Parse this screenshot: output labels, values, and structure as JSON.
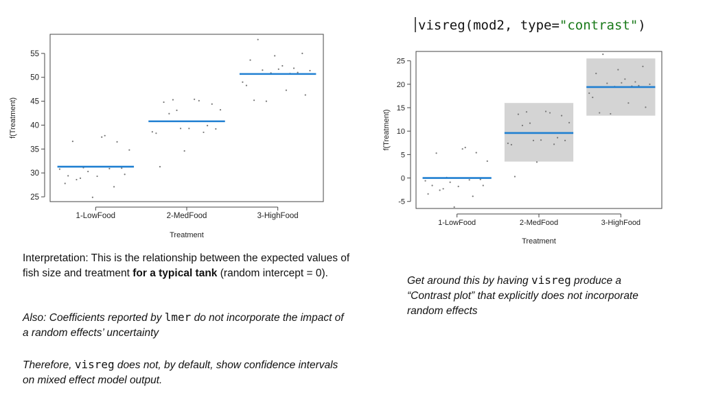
{
  "code": {
    "prefix": "visreg(mod2, type=",
    "string": "\"contrast\"",
    "suffix": ")"
  },
  "left_text": {
    "p1_before": "Interpretation: This is the relationship between the expected values of fish size and treatment ",
    "p1_bold": "for a typical tank",
    "p1_after": " (random intercept = 0).",
    "p2_a": "Also: Coefficients reported by ",
    "p2_code": "lmer",
    "p2_b": " do not incorporate the impact of a random effects’ uncertainty",
    "p3_a": "Therefore, ",
    "p3_code": "visreg",
    "p3_b": " does not, by default, show confidence intervals on mixed effect model output."
  },
  "right_text": {
    "a": "Get around this by having ",
    "code": "visreg",
    "b": " produce a “Contrast plot” that explicitly does not incorporate random effects"
  },
  "colors": {
    "fit_line": "#1f7fd1",
    "band": "#d4d4d4",
    "points": "#777777"
  },
  "chart_data": [
    {
      "type": "scatter",
      "xlabel": "Treatment",
      "ylabel": "f(Treatment)",
      "categories": [
        "1-LowFood",
        "2-MedFood",
        "3-HighFood"
      ],
      "ylim": [
        24,
        59
      ],
      "yticks": [
        25,
        30,
        35,
        40,
        45,
        50,
        55
      ],
      "fit": [
        31.3,
        40.8,
        50.7
      ],
      "bands": [],
      "points": [
        [
          [
            0.03,
            30.8
          ],
          [
            0.1,
            27.8
          ],
          [
            0.14,
            29.4
          ],
          [
            0.2,
            36.6
          ],
          [
            0.25,
            28.6
          ],
          [
            0.3,
            28.9
          ],
          [
            0.34,
            31.1
          ],
          [
            0.4,
            30.3
          ],
          [
            0.46,
            24.9
          ],
          [
            0.52,
            29.3
          ],
          [
            0.58,
            37.5
          ],
          [
            0.62,
            37.8
          ],
          [
            0.68,
            30.9
          ],
          [
            0.74,
            27.1
          ],
          [
            0.78,
            36.5
          ],
          [
            0.84,
            31.0
          ],
          [
            0.88,
            29.7
          ],
          [
            0.94,
            34.8
          ]
        ],
        [
          [
            0.05,
            38.6
          ],
          [
            0.1,
            38.3
          ],
          [
            0.15,
            31.3
          ],
          [
            0.2,
            44.8
          ],
          [
            0.27,
            42.4
          ],
          [
            0.32,
            45.3
          ],
          [
            0.37,
            43.1
          ],
          [
            0.42,
            39.3
          ],
          [
            0.47,
            34.6
          ],
          [
            0.53,
            39.3
          ],
          [
            0.6,
            45.4
          ],
          [
            0.66,
            45.1
          ],
          [
            0.72,
            38.5
          ],
          [
            0.77,
            39.9
          ],
          [
            0.83,
            44.4
          ],
          [
            0.88,
            39.2
          ],
          [
            0.94,
            43.2
          ]
        ],
        [
          [
            0.04,
            49.0
          ],
          [
            0.09,
            48.3
          ],
          [
            0.14,
            53.6
          ],
          [
            0.19,
            45.2
          ],
          [
            0.24,
            57.9
          ],
          [
            0.3,
            51.5
          ],
          [
            0.35,
            45.0
          ],
          [
            0.41,
            50.9
          ],
          [
            0.46,
            54.5
          ],
          [
            0.51,
            51.7
          ],
          [
            0.56,
            52.4
          ],
          [
            0.61,
            47.3
          ],
          [
            0.66,
            50.8
          ],
          [
            0.71,
            51.9
          ],
          [
            0.76,
            51.0
          ],
          [
            0.82,
            55.0
          ],
          [
            0.86,
            46.3
          ],
          [
            0.92,
            51.4
          ]
        ]
      ]
    },
    {
      "type": "scatter",
      "xlabel": "Treatment",
      "ylabel": "f(Treatment)",
      "categories": [
        "1-LowFood",
        "2-MedFood",
        "3-HighFood"
      ],
      "ylim": [
        -6.5,
        27
      ],
      "yticks": [
        -5,
        0,
        5,
        10,
        15,
        20,
        25
      ],
      "fit": [
        0,
        9.6,
        19.4
      ],
      "bands": [
        [
          0,
          0
        ],
        [
          3.5,
          16.0
        ],
        [
          13.3,
          25.5
        ]
      ],
      "points": [
        [
          [
            0.04,
            -0.6
          ],
          [
            0.08,
            -3.4
          ],
          [
            0.14,
            -1.6
          ],
          [
            0.2,
            5.3
          ],
          [
            0.25,
            -2.6
          ],
          [
            0.3,
            -2.3
          ],
          [
            0.35,
            0.1
          ],
          [
            0.4,
            -0.9
          ],
          [
            0.46,
            -6.2
          ],
          [
            0.52,
            -1.8
          ],
          [
            0.58,
            6.2
          ],
          [
            0.62,
            6.5
          ],
          [
            0.68,
            -0.4
          ],
          [
            0.73,
            -3.9
          ],
          [
            0.78,
            5.4
          ],
          [
            0.84,
            -0.3
          ],
          [
            0.88,
            -1.6
          ],
          [
            0.94,
            3.6
          ]
        ],
        [
          [
            0.05,
            7.4
          ],
          [
            0.1,
            7.1
          ],
          [
            0.15,
            0.3
          ],
          [
            0.2,
            13.6
          ],
          [
            0.26,
            11.2
          ],
          [
            0.32,
            14.1
          ],
          [
            0.37,
            11.7
          ],
          [
            0.42,
            8.0
          ],
          [
            0.47,
            3.4
          ],
          [
            0.53,
            8.1
          ],
          [
            0.6,
            14.2
          ],
          [
            0.66,
            13.9
          ],
          [
            0.72,
            7.2
          ],
          [
            0.77,
            8.6
          ],
          [
            0.83,
            13.3
          ],
          [
            0.88,
            8.0
          ],
          [
            0.94,
            11.8
          ]
        ],
        [
          [
            0.04,
            18.1
          ],
          [
            0.09,
            17.2
          ],
          [
            0.14,
            22.3
          ],
          [
            0.19,
            13.9
          ],
          [
            0.24,
            26.4
          ],
          [
            0.3,
            20.2
          ],
          [
            0.35,
            13.7
          ],
          [
            0.41,
            19.5
          ],
          [
            0.46,
            23.1
          ],
          [
            0.51,
            20.3
          ],
          [
            0.56,
            21.1
          ],
          [
            0.61,
            16.0
          ],
          [
            0.66,
            19.6
          ],
          [
            0.71,
            20.5
          ],
          [
            0.76,
            19.7
          ],
          [
            0.82,
            23.8
          ],
          [
            0.86,
            15.1
          ],
          [
            0.92,
            20.0
          ]
        ]
      ]
    }
  ]
}
